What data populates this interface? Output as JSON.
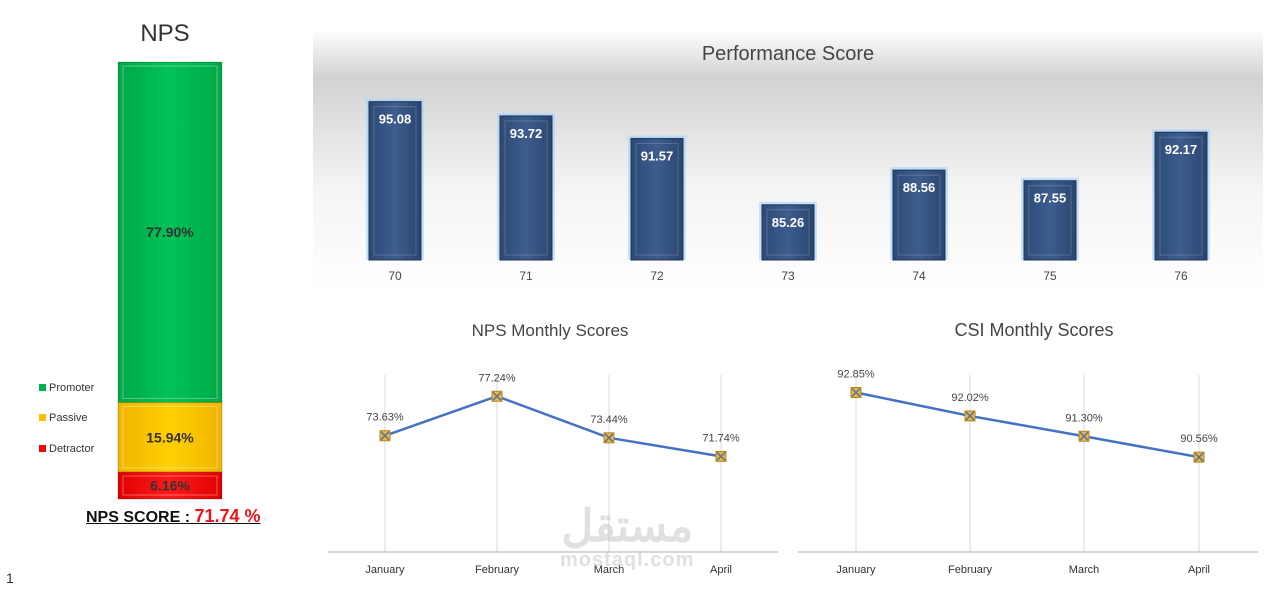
{
  "nps_panel": {
    "title": "NPS",
    "score_label": "NPS SCORE : ",
    "score_value": "71.74 %",
    "colors": {
      "promoter": "#00b050",
      "passive": "#ffc000",
      "detractor": "#ff0000"
    }
  },
  "page_number": "1",
  "watermark": {
    "arabic": "مستقل",
    "latin": "mostaql.com"
  },
  "chart_data": [
    {
      "type": "bar",
      "stacked": true,
      "title": "NPS",
      "categories": [
        "NPS"
      ],
      "series": [
        {
          "name": "Promoter",
          "values": [
            77.9
          ],
          "label": "77.90%"
        },
        {
          "name": "Passive",
          "values": [
            15.94
          ],
          "label": "15.94%"
        },
        {
          "name": "Detractor",
          "values": [
            6.16
          ],
          "label": "6.16%"
        }
      ],
      "legend": "left"
    },
    {
      "type": "bar",
      "title": "Performance Score",
      "categories": [
        "70",
        "71",
        "72",
        "73",
        "74",
        "75",
        "76"
      ],
      "values": [
        95.08,
        93.72,
        91.57,
        85.26,
        88.56,
        87.55,
        92.17
      ],
      "labels": [
        "95.08",
        "93.72",
        "91.57",
        "85.26",
        "88.56",
        "87.55",
        "92.17"
      ],
      "ylim": [
        80,
        96
      ]
    },
    {
      "type": "line",
      "title": "NPS Monthly Scores",
      "categories": [
        "January",
        "February",
        "March",
        "April"
      ],
      "values": [
        73.63,
        77.24,
        73.44,
        71.74
      ],
      "labels": [
        "73.63%",
        "77.24%",
        "73.44%",
        "71.74%"
      ],
      "ylim": [
        63,
        79
      ]
    },
    {
      "type": "line",
      "title": "CSI Monthly Scores",
      "categories": [
        "January",
        "February",
        "March",
        "April"
      ],
      "values": [
        92.85,
        92.02,
        91.3,
        90.56
      ],
      "labels": [
        "92.85%",
        "92.02%",
        "91.30%",
        "90.56%"
      ],
      "ylim": [
        87.2,
        93.4
      ]
    }
  ]
}
